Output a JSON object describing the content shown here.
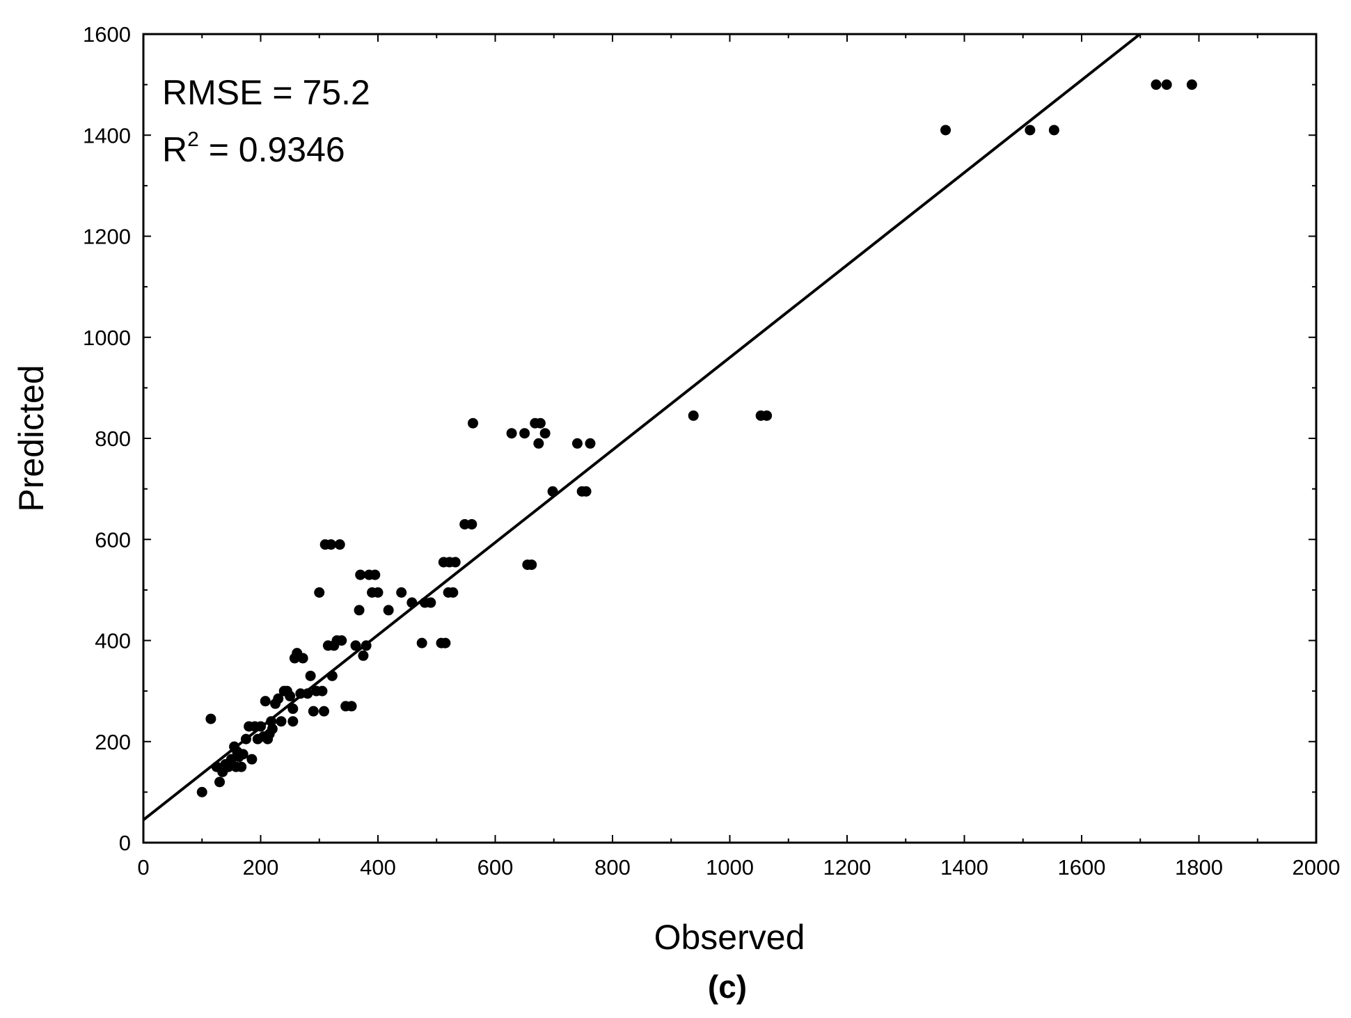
{
  "chart_data": {
    "type": "scatter",
    "xlabel": "Observed",
    "ylabel": "Predicted",
    "panel_label": "(c)",
    "xlim": [
      0,
      2000
    ],
    "ylim": [
      0,
      1600
    ],
    "x_ticks": [
      "0",
      "200",
      "400",
      "600",
      "800",
      "1000",
      "1200",
      "1400",
      "1600",
      "1800",
      "2000"
    ],
    "y_ticks": [
      "0",
      "200",
      "400",
      "600",
      "800",
      "1000",
      "1200",
      "1400",
      "1600"
    ],
    "grid": false,
    "annotations": {
      "rmse": "RMSE = 75.2",
      "r2_prefix": "R",
      "r2_exponent": "2",
      "r2_value": " = 0.9346"
    },
    "fit_line": {
      "intercept": 45,
      "slope": 0.915
    },
    "marker_color": "#000000",
    "points": [
      [
        100,
        100
      ],
      [
        115,
        245
      ],
      [
        125,
        150
      ],
      [
        130,
        120
      ],
      [
        135,
        140
      ],
      [
        140,
        155
      ],
      [
        145,
        150
      ],
      [
        150,
        165
      ],
      [
        155,
        190
      ],
      [
        158,
        150
      ],
      [
        160,
        180
      ],
      [
        163,
        170
      ],
      [
        167,
        150
      ],
      [
        170,
        175
      ],
      [
        175,
        205
      ],
      [
        180,
        230
      ],
      [
        185,
        165
      ],
      [
        190,
        230
      ],
      [
        195,
        205
      ],
      [
        200,
        230
      ],
      [
        205,
        210
      ],
      [
        208,
        280
      ],
      [
        212,
        205
      ],
      [
        215,
        215
      ],
      [
        218,
        240
      ],
      [
        220,
        225
      ],
      [
        225,
        275
      ],
      [
        230,
        285
      ],
      [
        235,
        240
      ],
      [
        240,
        300
      ],
      [
        245,
        300
      ],
      [
        250,
        290
      ],
      [
        255,
        265
      ],
      [
        255,
        240
      ],
      [
        258,
        365
      ],
      [
        262,
        375
      ],
      [
        268,
        295
      ],
      [
        272,
        365
      ],
      [
        280,
        295
      ],
      [
        285,
        330
      ],
      [
        290,
        260
      ],
      [
        295,
        300
      ],
      [
        300,
        495
      ],
      [
        305,
        300
      ],
      [
        308,
        260
      ],
      [
        310,
        590
      ],
      [
        315,
        390
      ],
      [
        320,
        590
      ],
      [
        322,
        330
      ],
      [
        325,
        390
      ],
      [
        330,
        400
      ],
      [
        335,
        590
      ],
      [
        338,
        400
      ],
      [
        345,
        270
      ],
      [
        355,
        270
      ],
      [
        362,
        390
      ],
      [
        368,
        460
      ],
      [
        370,
        530
      ],
      [
        375,
        370
      ],
      [
        380,
        390
      ],
      [
        385,
        530
      ],
      [
        390,
        495
      ],
      [
        395,
        530
      ],
      [
        400,
        495
      ],
      [
        418,
        460
      ],
      [
        440,
        495
      ],
      [
        458,
        475
      ],
      [
        475,
        395
      ],
      [
        480,
        475
      ],
      [
        490,
        475
      ],
      [
        508,
        395
      ],
      [
        512,
        555
      ],
      [
        515,
        395
      ],
      [
        520,
        495
      ],
      [
        522,
        555
      ],
      [
        528,
        495
      ],
      [
        532,
        555
      ],
      [
        548,
        630
      ],
      [
        560,
        630
      ],
      [
        562,
        830
      ],
      [
        628,
        810
      ],
      [
        650,
        810
      ],
      [
        655,
        550
      ],
      [
        662,
        550
      ],
      [
        668,
        830
      ],
      [
        674,
        790
      ],
      [
        677,
        830
      ],
      [
        685,
        810
      ],
      [
        698,
        695
      ],
      [
        740,
        790
      ],
      [
        748,
        695
      ],
      [
        755,
        695
      ],
      [
        762,
        790
      ],
      [
        938,
        845
      ],
      [
        1053,
        845
      ],
      [
        1063,
        845
      ],
      [
        1368,
        1410
      ],
      [
        1512,
        1410
      ],
      [
        1553,
        1410
      ],
      [
        1727,
        1500
      ],
      [
        1745,
        1500
      ],
      [
        1788,
        1500
      ]
    ]
  }
}
